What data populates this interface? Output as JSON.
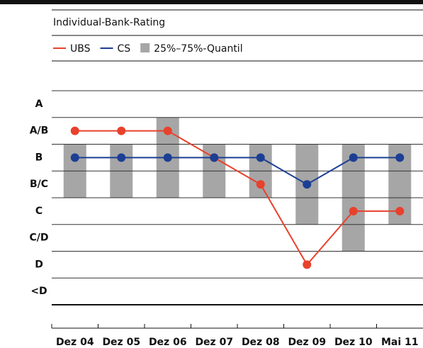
{
  "chart_data": {
    "type": "line",
    "title": "Individual-Bank-Rating",
    "categories": [
      "Dez 04",
      "Dez 05",
      "Dez 06",
      "Dez 07",
      "Dez 08",
      "Dez 09",
      "Dez 10",
      "Mai 11"
    ],
    "ylim": [
      0.5,
      8.5
    ],
    "yticks": [
      {
        "value": 8,
        "label": "A"
      },
      {
        "value": 7,
        "label": "A/B"
      },
      {
        "value": 6,
        "label": "B"
      },
      {
        "value": 5,
        "label": "B/C"
      },
      {
        "value": 4,
        "label": "C"
      },
      {
        "value": 3,
        "label": "C/D"
      },
      {
        "value": 2,
        "label": "D"
      },
      {
        "value": 1,
        "label": "<D"
      }
    ],
    "grid": true,
    "series": [
      {
        "name": "UBS",
        "color": "#e8412c",
        "values": [
          7,
          7,
          7,
          6,
          5,
          2,
          4,
          4
        ]
      },
      {
        "name": "CS",
        "color": "#1c3f94",
        "values": [
          6,
          6,
          6,
          6,
          6,
          5,
          6,
          6
        ]
      }
    ],
    "range": {
      "name": "25%–75%-Quantil",
      "color": "#a6a6a6",
      "low": [
        4.5,
        4.5,
        4.5,
        4.5,
        4.5,
        3.5,
        2.5,
        3.5
      ],
      "high": [
        6.5,
        6.5,
        7.5,
        6.5,
        6.5,
        6.5,
        6.5,
        6.5
      ]
    }
  }
}
